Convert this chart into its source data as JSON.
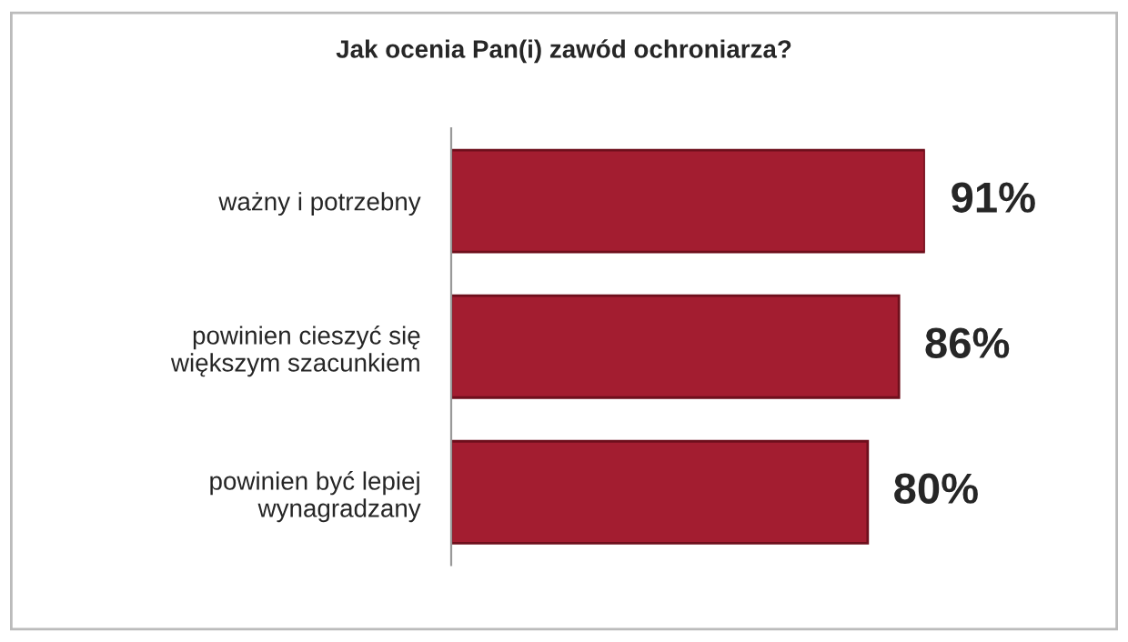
{
  "chart_data": {
    "type": "bar",
    "orientation": "horizontal",
    "title": "Jak ocenia Pan(i) zawód ochroniarza?",
    "categories": [
      "ważny i potrzebny",
      "powinien cieszyć się\nwiększym szacunkiem",
      "powinien być lepiej\nwynagradzany"
    ],
    "values": [
      91,
      86,
      80
    ],
    "color": "#a31d30",
    "value_labels": [
      "91%",
      "86%",
      "80%"
    ],
    "grid": false,
    "legend": false
  }
}
